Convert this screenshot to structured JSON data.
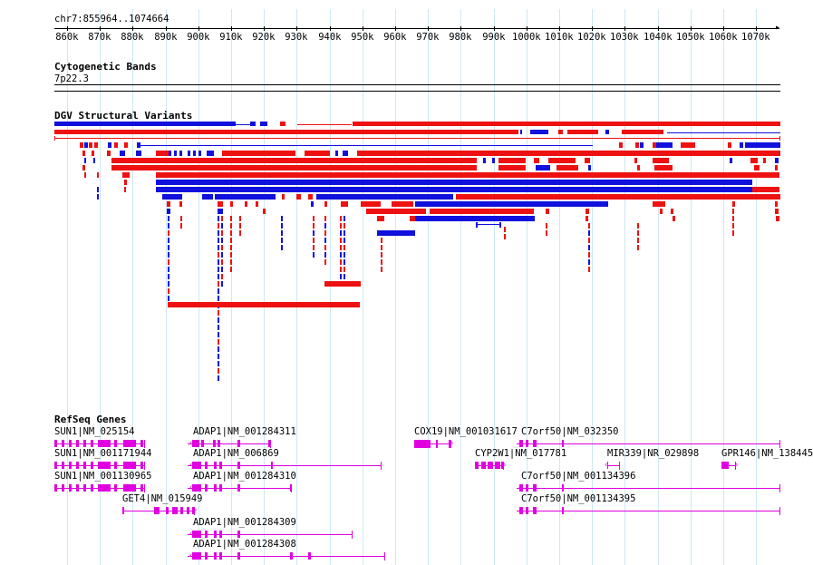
{
  "ruler": {
    "position": "chr7:855964..1074664",
    "ticks": [
      "860k",
      "870k",
      "880k",
      "890k",
      "900k",
      "910k",
      "920k",
      "930k",
      "940k",
      "950k",
      "960k",
      "970k",
      "980k",
      "990k",
      "1000k",
      "1010k",
      "1020k",
      "1030k",
      "1040k",
      "1050k",
      "1060k",
      "1070k"
    ]
  },
  "cytoband": {
    "title": "Cytogenetic Bands",
    "band": "7p22.3"
  },
  "dgv": {
    "title": "DGV Structural Variants",
    "colors": {
      "gain": "#ee1111",
      "loss": "#1111dd"
    }
  },
  "refseq": {
    "title": "RefSeq Genes",
    "gene_color": "#e000e0",
    "genes": [
      {
        "label": "SUN1|NM_025154"
      },
      {
        "label": "SUN1|NM_001171944"
      },
      {
        "label": "SUN1|NM_001130965"
      },
      {
        "label": "GET4|NM_015949"
      },
      {
        "label": "ADAP1|NM_001284311"
      },
      {
        "label": "ADAP1|NM_006869"
      },
      {
        "label": "ADAP1|NM_001284310"
      },
      {
        "label": "ADAP1|NM_001284309"
      },
      {
        "label": "ADAP1|NM_001284308"
      },
      {
        "label": "COX19|NM_001031617"
      },
      {
        "label": "CYP2W1|NM_017781"
      },
      {
        "label": "C7orf50|NM_032350"
      },
      {
        "label": "C7orf50|NM_001134396"
      },
      {
        "label": "C7orf50|NM_001134395"
      },
      {
        "label": "MIR339|NR_029898"
      },
      {
        "label": "GPR146|NM_138445"
      }
    ]
  }
}
